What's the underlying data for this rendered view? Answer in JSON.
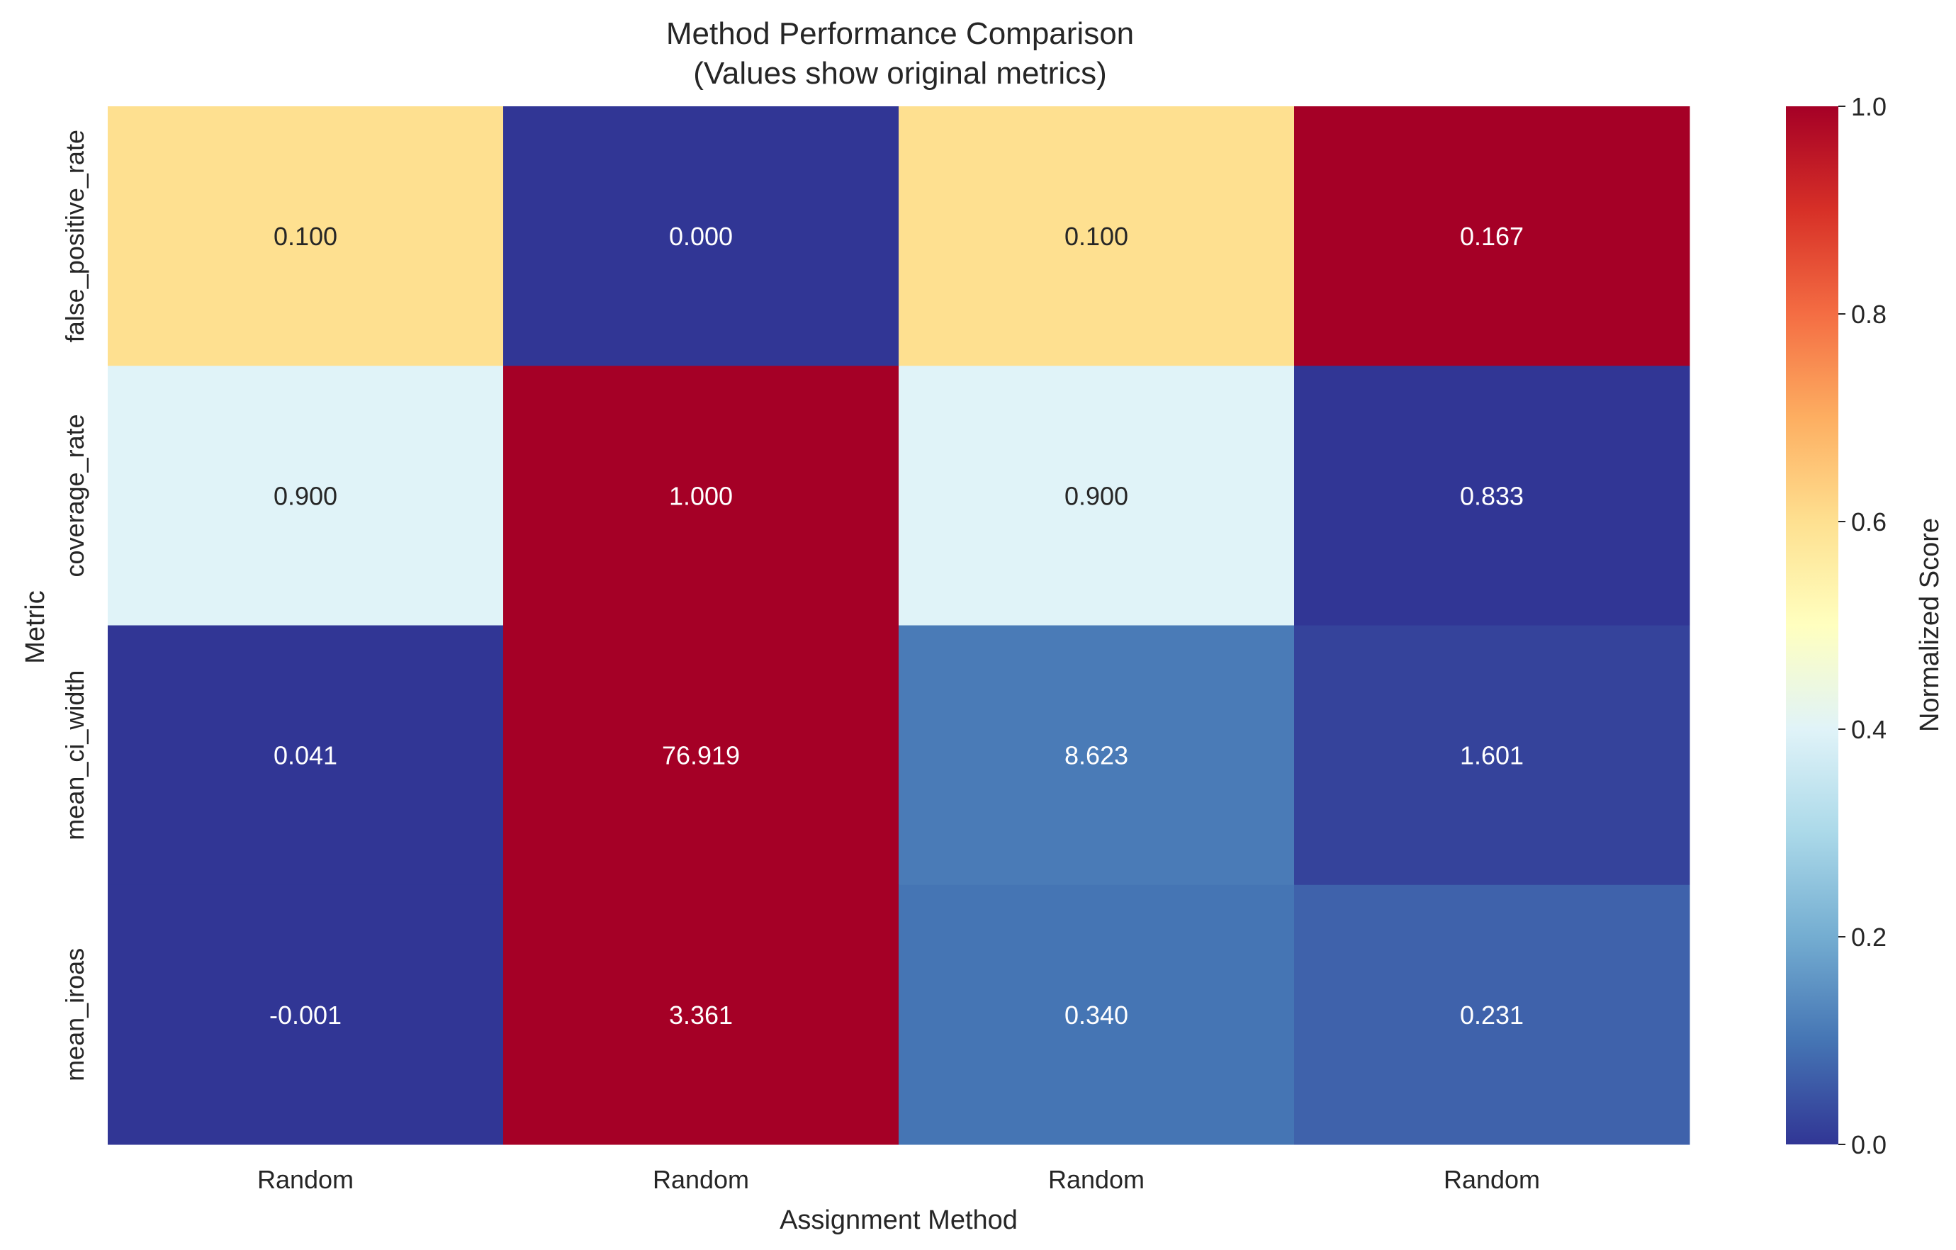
{
  "chart_data": {
    "type": "heatmap",
    "title": "Method Performance Comparison",
    "subtitle": "(Values show original metrics)",
    "xlabel": "Assignment Method",
    "ylabel": "Metric",
    "x_categories": [
      "Random",
      "Random",
      "Random",
      "Random"
    ],
    "y_categories": [
      "false_positive_rate",
      "coverage_rate",
      "mean_ci_width",
      "mean_iroas"
    ],
    "annotations": [
      [
        "0.100",
        "0.000",
        "0.100",
        "0.167"
      ],
      [
        "0.900",
        "1.000",
        "0.900",
        "0.833"
      ],
      [
        "0.041",
        "76.919",
        "8.623",
        "1.601"
      ],
      [
        "-0.001",
        "3.361",
        "0.340",
        "0.231"
      ]
    ],
    "normalized_scores": [
      [
        0.6,
        0.0,
        0.6,
        1.0
      ],
      [
        0.4,
        1.0,
        0.4,
        0.0
      ],
      [
        0.0,
        1.0,
        0.11,
        0.02
      ],
      [
        0.0,
        1.0,
        0.1,
        0.07
      ]
    ],
    "colormap": "RdYlBu_r",
    "colormap_stops": [
      "#313695",
      "#4575b4",
      "#74add1",
      "#abd9e9",
      "#e0f3f8",
      "#ffffbf",
      "#fee090",
      "#fdae61",
      "#f46d43",
      "#d73027",
      "#a50026"
    ],
    "colorbar": {
      "label": "Normalized Score",
      "range": [
        0.0,
        1.0
      ],
      "ticks": [
        "0.0",
        "0.2",
        "0.4",
        "0.6",
        "0.8",
        "1.0"
      ]
    }
  }
}
